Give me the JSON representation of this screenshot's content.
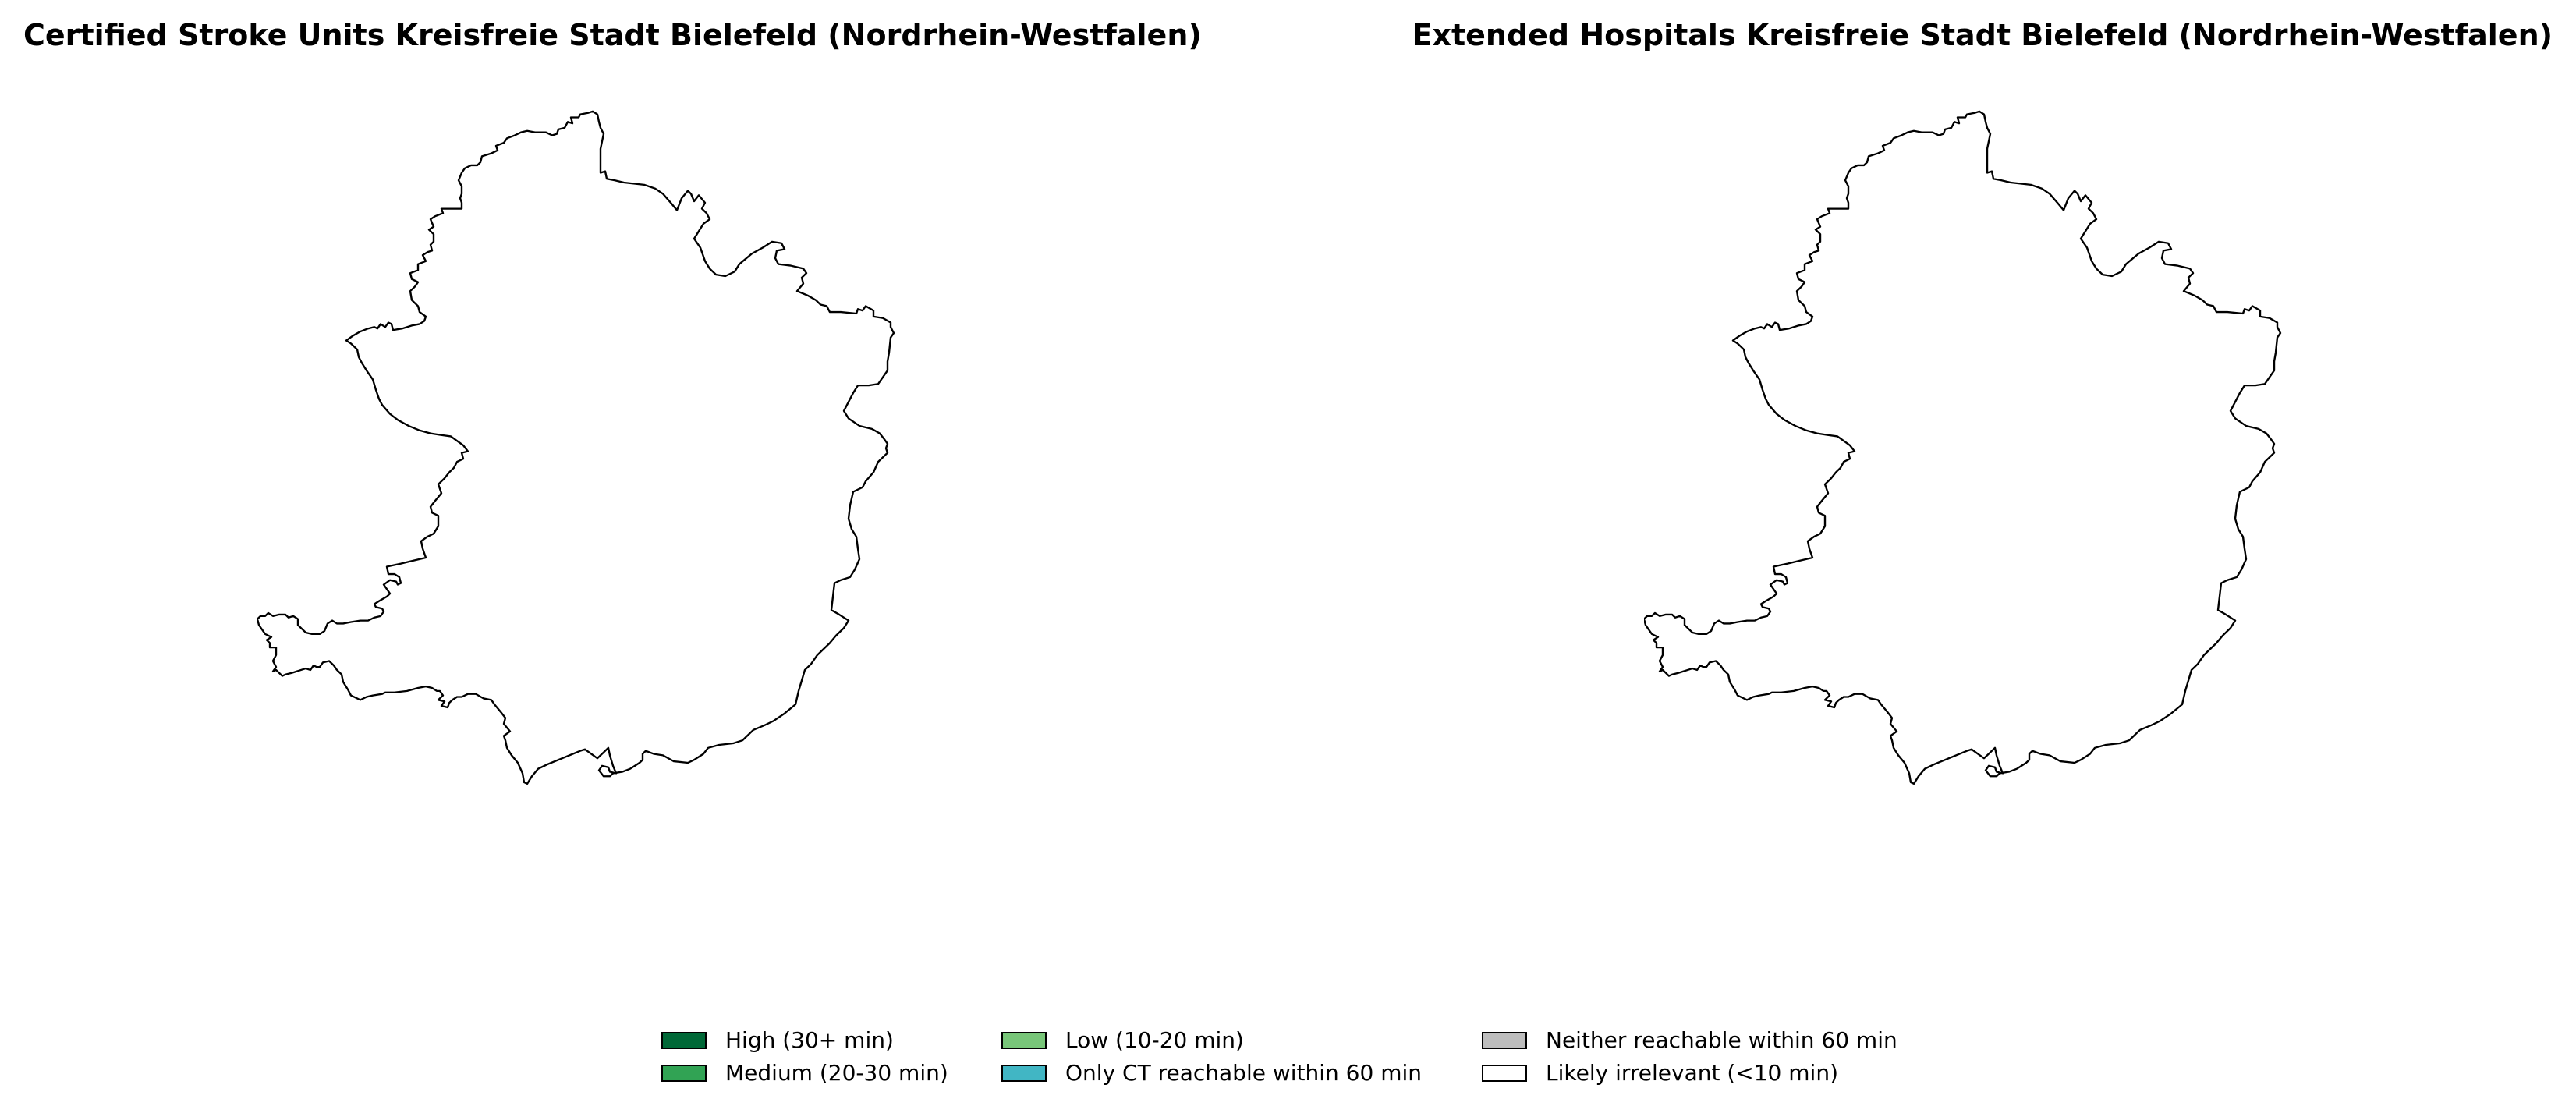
{
  "panels": [
    {
      "title": "Certified Stroke Units Kreisfreie Stadt Bielefeld (Nordrhein-Westfalen)"
    },
    {
      "title": "Extended Hospitals Kreisfreie Stadt Bielefeld (Nordrhein-Westfalen)"
    }
  ],
  "region_fill": "#ffffff",
  "region_stroke": "#000000",
  "legend": {
    "items": [
      {
        "label": "High (30+ min)",
        "color": "#006837"
      },
      {
        "label": "Medium (20-30 min)",
        "color": "#31a354"
      },
      {
        "label": "Low (10-20 min)",
        "color": "#78c679"
      },
      {
        "label": "Only CT reachable within 60 min",
        "color": "#41b6c4"
      },
      {
        "label": "Neither reachable within 60 min",
        "color": "#bdbdbd"
      },
      {
        "label": "Likely irrelevant (<10 min)",
        "color": "#ffffff"
      }
    ]
  }
}
